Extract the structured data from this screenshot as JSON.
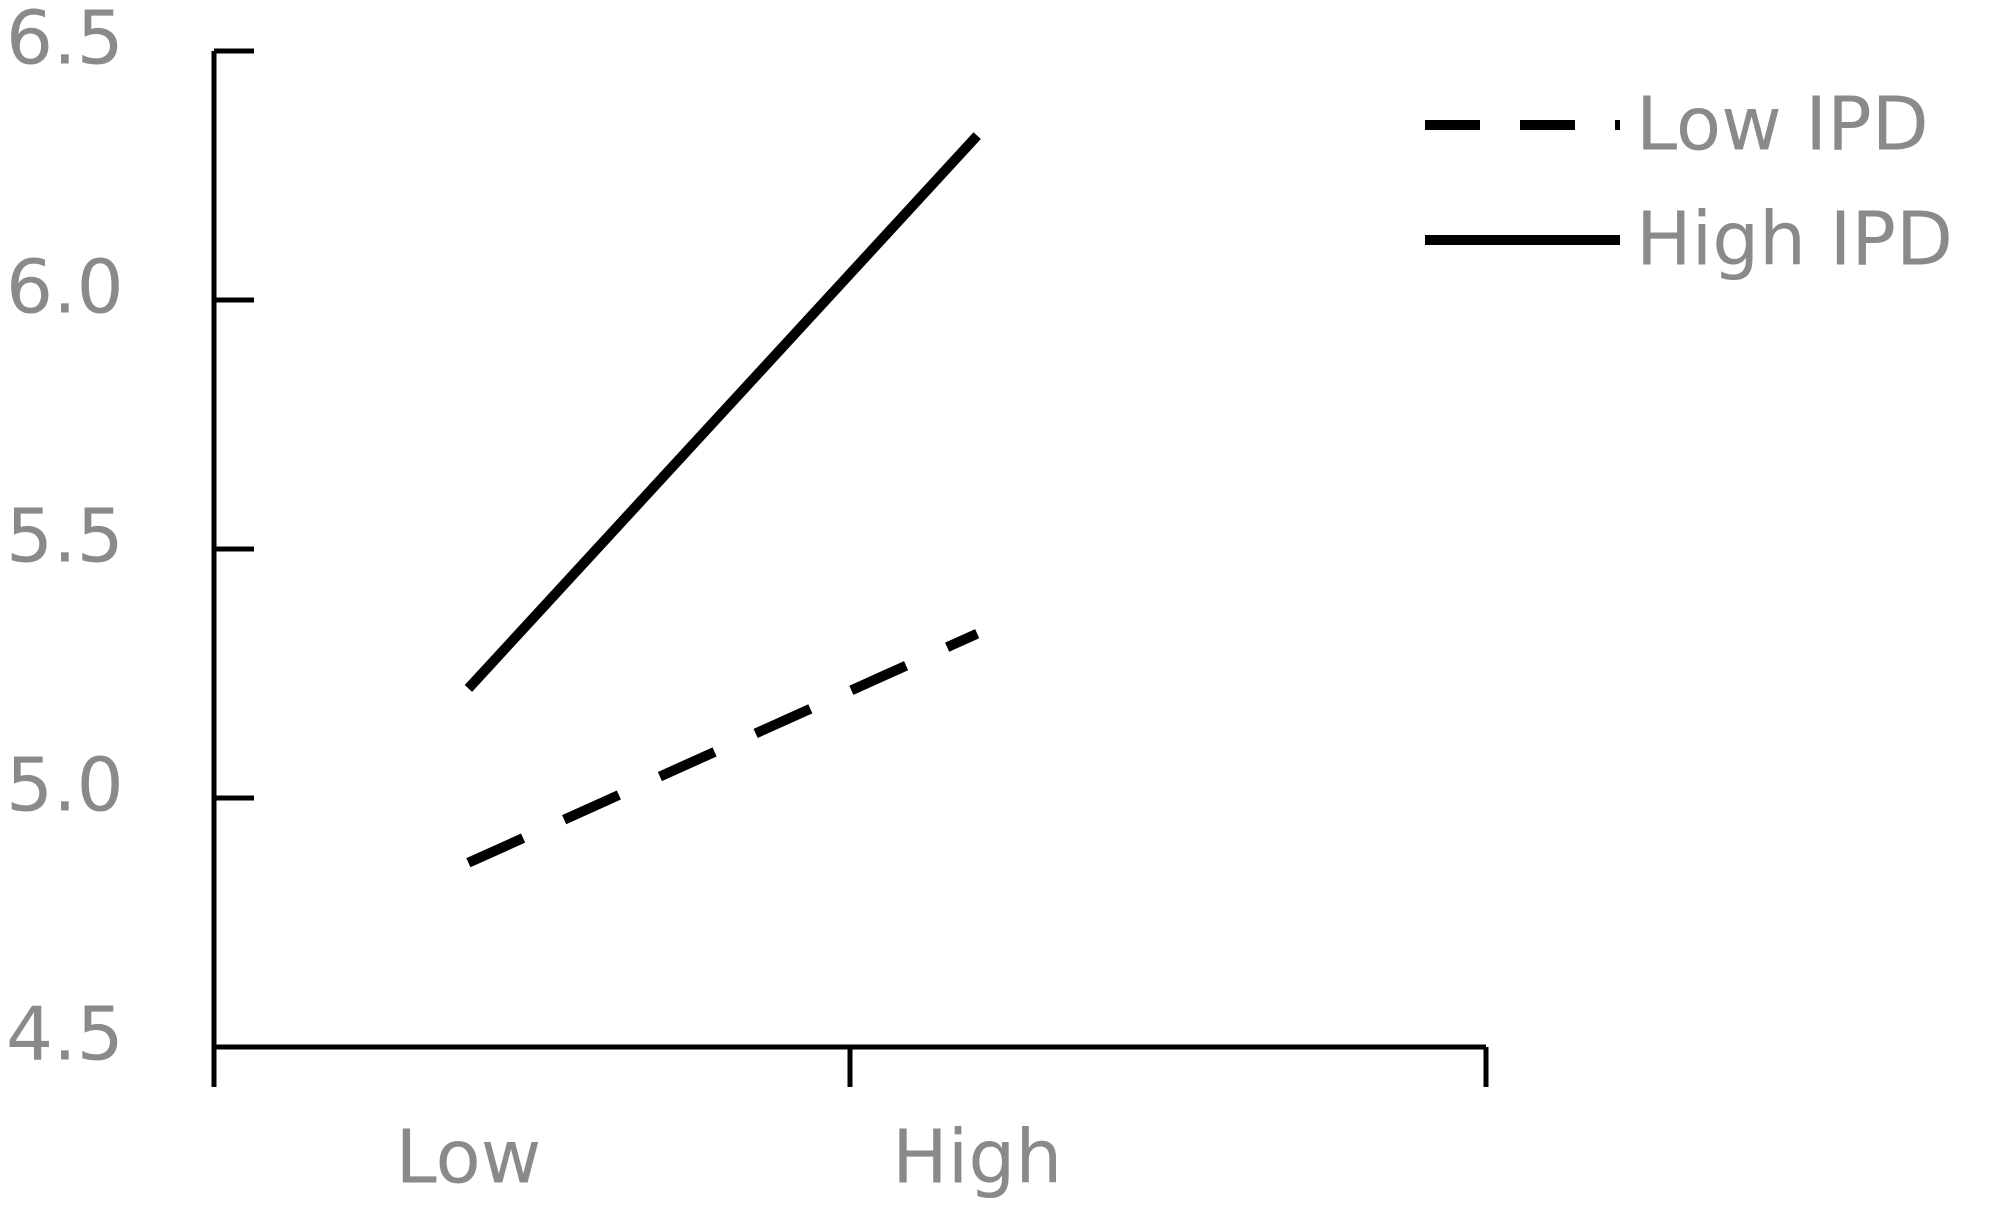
{
  "chart_data": {
    "type": "line",
    "categories": [
      "Low",
      "High"
    ],
    "series": [
      {
        "name": "Low IPD",
        "color": "#000000",
        "dash": true,
        "values": [
          4.87,
          5.33
        ]
      },
      {
        "name": "High IPD",
        "color": "#000000",
        "dash": false,
        "values": [
          5.22,
          6.33
        ]
      }
    ],
    "ylim": [
      4.5,
      6.5
    ],
    "yticks": [
      4.5,
      {
        "value": 5,
        "label": "5.0"
      },
      5.5,
      {
        "value": 6,
        "label": "6.0"
      },
      6.5
    ],
    "grid": false,
    "legend": "top-right"
  }
}
